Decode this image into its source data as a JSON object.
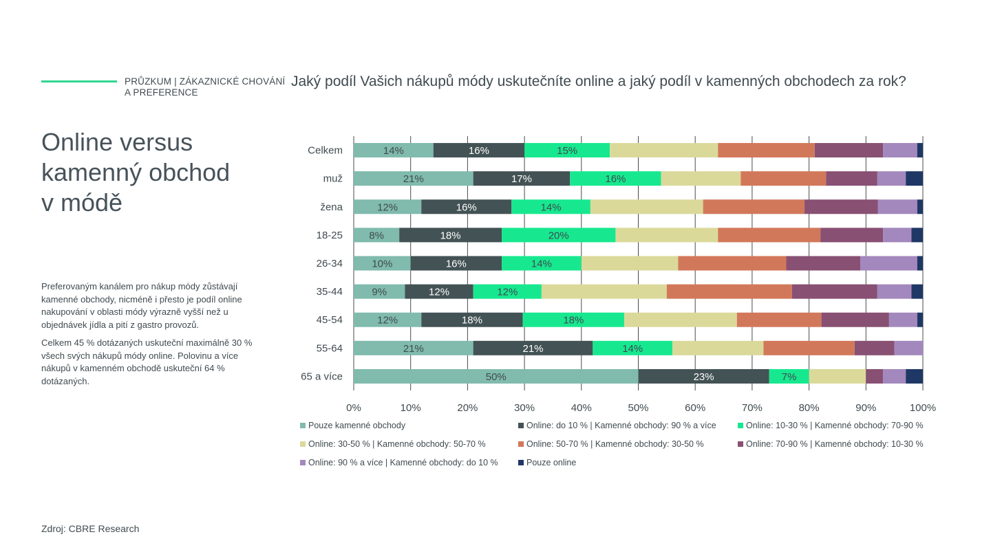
{
  "header": {
    "kicker_line1": "PRŮZKUM |  ZÁKAZNICKÉ CHOVÁNÍ",
    "kicker_line2": "A PREFERENCE",
    "question": "Jaký podíl Vašich nákupů módy uskutečníte online a jaký podíl v kamenných obchodech za rok?"
  },
  "title_lines": [
    "Online versus",
    "kamenný obchod",
    "v módě"
  ],
  "body": {
    "p1": "Preferovaným kanálem pro nákup módy zůstávají kamenné obchody, nicméně i přesto je podíl online nakupování v oblasti módy výrazně vyšší než u objednávek jídla a pití z gastro provozů.",
    "p2": "Celkem 45 % dotázaných uskuteční maximálně 30 % všech svých nákupů módy online. Polovinu a více nákupů v kamenném obchodě uskuteční 64 % dotázaných."
  },
  "source": "Zdroj: CBRE Research",
  "colors": {
    "accent": "#2fd58f",
    "text": "#3f4a4f"
  },
  "chart_data": {
    "type": "bar",
    "orientation": "horizontal",
    "stacked": "percent",
    "categories": [
      "Celkem",
      "muž",
      "žena",
      "18-25",
      "26-34",
      "35-44",
      "45-54",
      "55-64",
      "65 a více"
    ],
    "xlim": [
      0,
      100
    ],
    "xticks": [
      "0%",
      "10%",
      "20%",
      "30%",
      "40%",
      "50%",
      "60%",
      "70%",
      "80%",
      "90%",
      "100%"
    ],
    "grid": true,
    "legend_position": "bottom",
    "series": [
      {
        "name": "Pouze kamenné obchody",
        "color": "#80bbad",
        "label_color": "#3f4a4f",
        "values": [
          14,
          21,
          12,
          8,
          10,
          9,
          12,
          21,
          50
        ],
        "labels": [
          "14%",
          "21%",
          "12%",
          "8%",
          "10%",
          "9%",
          "12%",
          "21%",
          "50%"
        ]
      },
      {
        "name": "Online: do 10 % | Kamenné obchody: 90 % a více",
        "color": "#435254",
        "label_color": "#ffffff",
        "values": [
          16,
          17,
          16,
          18,
          16,
          12,
          18,
          21,
          23
        ],
        "labels": [
          "16%",
          "17%",
          "16%",
          "18%",
          "16%",
          "12%",
          "18%",
          "21%",
          "23%"
        ]
      },
      {
        "name": "Online: 10-30 % | Kamenné obchody: 70-90 %",
        "color": "#17e88f",
        "label_color": "#3f4a4f",
        "values": [
          15,
          16,
          14,
          20,
          14,
          12,
          18,
          14,
          7
        ],
        "labels": [
          "15%",
          "16%",
          "14%",
          "20%",
          "14%",
          "12%",
          "18%",
          "14%",
          "7%"
        ]
      },
      {
        "name": "Online: 30-50 % | Kamenné obchody: 50-70 %",
        "color": "#dbd99a",
        "label_color": "#3f4a4f",
        "values": [
          19,
          14,
          20,
          18,
          17,
          22,
          20,
          16,
          10
        ]
      },
      {
        "name": "Online: 50-70 % | Kamenné obchody: 30-50 %",
        "color": "#d2785a",
        "label_color": "#3f4a4f",
        "values": [
          17,
          15,
          18,
          18,
          19,
          22,
          15,
          16,
          0
        ]
      },
      {
        "name": "Online: 70-90 % | Kamenné obchody: 10-30 %",
        "color": "#885073",
        "label_color": "#ffffff",
        "values": [
          12,
          9,
          13,
          11,
          13,
          15,
          12,
          7,
          3
        ]
      },
      {
        "name": "Online: 90 % a více | Kamenné obchody: do 10 %",
        "color": "#a388bd",
        "label_color": "#3f4a4f",
        "values": [
          6,
          5,
          7,
          5,
          10,
          6,
          5,
          5,
          4
        ]
      },
      {
        "name": "Pouze online",
        "color": "#1f3765",
        "label_color": "#ffffff",
        "values": [
          1,
          3,
          1,
          2,
          1,
          2,
          1,
          0,
          3
        ]
      }
    ]
  }
}
